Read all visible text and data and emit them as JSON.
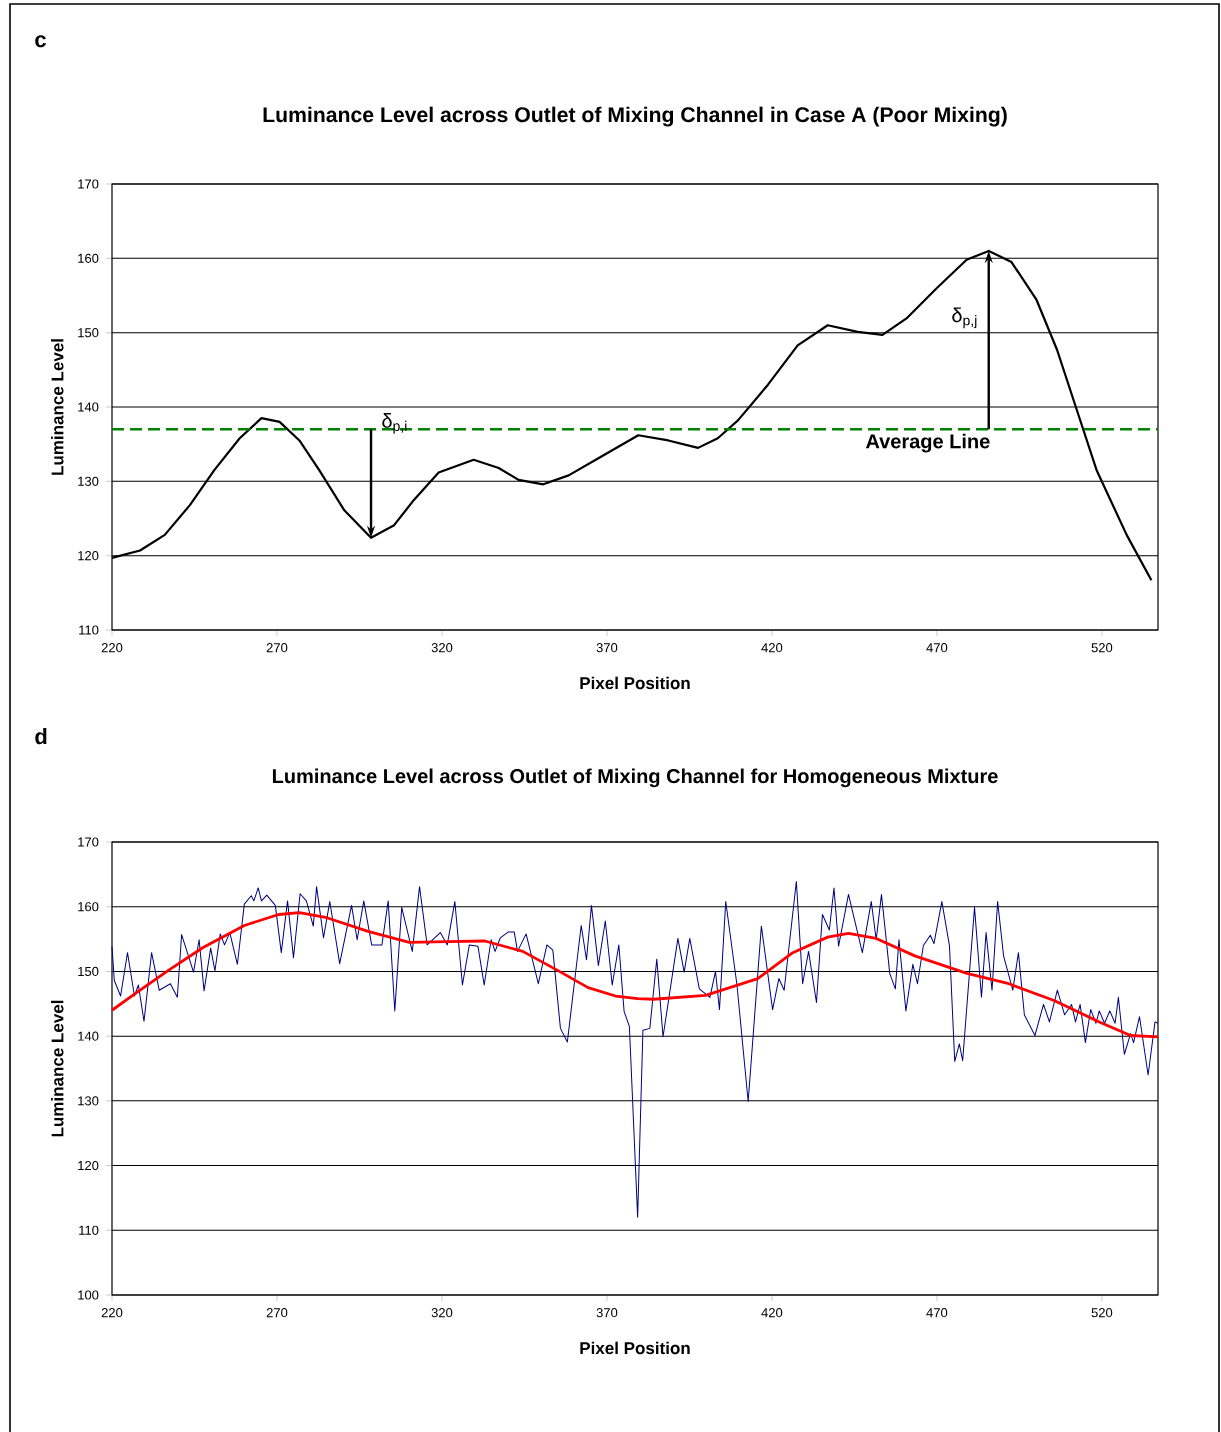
{
  "chart_data": [
    {
      "type": "line",
      "title": "Luminance Level across Outlet of Mixing Channel in Case A (Poor Mixing)",
      "xlabel": "Pixel Position",
      "ylabel": "Luminance Level",
      "x": [
        220,
        228.5,
        236,
        243.6,
        251,
        258.7,
        265.3,
        270.8,
        276.8,
        282.8,
        290.4,
        298.5,
        305.5,
        311.5,
        319,
        329.6,
        337.2,
        343.2,
        350.7,
        358.4,
        367.4,
        379.5,
        388.6,
        397.6,
        403.6,
        409.7,
        418.8,
        427.8,
        436.9,
        446,
        453.5,
        461,
        470,
        479,
        485.7,
        492.6,
        500.2,
        506.4,
        512.4,
        518.4,
        527.5,
        535
      ],
      "series": [
        {
          "color": "#000000",
          "values": [
            119.7,
            120.7,
            122.8,
            126.8,
            131.5,
            135.8,
            138.5,
            138,
            135.5,
            131.5,
            126.1,
            122.4,
            124.1,
            127.5,
            131.2,
            132.9,
            131.8,
            130.2,
            129.6,
            130.8,
            133.1,
            136.2,
            135.5,
            134.5,
            135.8,
            138.2,
            143,
            148.3,
            151,
            150.1,
            149.7,
            152,
            156,
            159.8,
            161,
            159.5,
            154.4,
            147.7,
            139.6,
            131.5,
            122.8,
            116.7
          ]
        }
      ],
      "xlim": [
        220,
        537
      ],
      "ylim": [
        110,
        170
      ],
      "xticks": [
        220,
        270,
        320,
        370,
        420,
        470,
        520
      ],
      "yticks": [
        110,
        120,
        130,
        140,
        150,
        160,
        170
      ],
      "grid": "y",
      "ref_lines": [
        {
          "axis": "y",
          "value": 137,
          "label": "Average Line",
          "color": "#008000",
          "line_style": "dashed"
        }
      ],
      "annotations": [
        "c",
        {
          "text": "δ$_{p,i}$",
          "x": 298.5,
          "y": 122.4
        },
        {
          "text": "δ$_{p,j}$",
          "x": 485.7,
          "y": 161
        }
      ]
    },
    {
      "type": "line",
      "title": "Luminance Level across Outlet of Mixing Channel for Homogeneous Mixture",
      "xlabel": "Pixel Position",
      "ylabel": "Luminance Level",
      "series": [
        {
          "color": "#000080",
          "x": [
            220,
            220.7,
            222.6,
            224.7,
            226.8,
            228,
            229.7,
            232,
            234.3,
            237.7,
            239.8,
            241.1,
            244.7,
            246.4,
            247.9,
            249.9,
            251.2,
            252.8,
            254.1,
            255.7,
            258,
            260.1,
            262.2,
            263,
            264.3,
            265.3,
            266.9,
            269.5,
            271.3,
            273.2,
            275,
            277,
            278.9,
            281,
            282,
            284.1,
            286,
            289,
            292.6,
            294.3,
            296.3,
            298.7,
            301.8,
            303.7,
            305.7,
            307.8,
            311,
            313.2,
            315.5,
            319.5,
            321.6,
            323.9,
            326.2,
            328.3,
            330.9,
            332.8,
            334.9,
            336.1,
            337.7,
            340.1,
            341.9,
            342.9,
            345.5,
            349.2,
            351.8,
            353.6,
            355.9,
            358,
            362.2,
            363.8,
            365.3,
            367.4,
            369.5,
            371.6,
            373.6,
            375.2,
            376.8,
            379.3,
            380.9,
            383,
            385.1,
            387,
            391.5,
            393.4,
            395.1,
            398,
            401.2,
            402.9,
            404.1,
            406,
            409.4,
            412.8,
            416.8,
            420.2,
            422.1,
            423.7,
            427.4,
            429.3,
            431.1,
            433.5,
            435.3,
            437.4,
            438.8,
            440.2,
            443.2,
            447.4,
            450.1,
            451.6,
            453.2,
            455.7,
            457.4,
            458.5,
            460.6,
            462.7,
            464.1,
            465.9,
            468,
            469.1,
            471.5,
            473.8,
            475.4,
            476.8,
            477.8,
            481.4,
            483.5,
            484.9,
            486.7,
            488.4,
            490.2,
            493,
            494.7,
            496.5,
            499.7,
            502.3,
            504.1,
            506.5,
            508.7,
            510.8,
            512,
            513.4,
            515,
            516.6,
            518.2,
            519.2,
            520.8,
            522.4,
            524,
            525,
            526.8,
            528.7,
            529.6,
            531.4,
            534,
            536.1,
            537
          ],
          "values": [
            153.8,
            148.6,
            146.2,
            152.9,
            146.2,
            147.9,
            142.3,
            152.9,
            147.1,
            148.1,
            146,
            155.7,
            149.9,
            154.9,
            147,
            153.6,
            150.1,
            155.8,
            154.1,
            156,
            151.1,
            160.4,
            161.7,
            160.9,
            162.9,
            160.9,
            161.8,
            160.2,
            152.9,
            160.9,
            152.1,
            162,
            160.9,
            157,
            163.1,
            155.2,
            160.8,
            151.2,
            160.2,
            154.9,
            160.9,
            154.1,
            154.1,
            160.9,
            143.9,
            159.9,
            153.1,
            163.1,
            154.1,
            156,
            154.1,
            160.8,
            147.9,
            154.1,
            153.9,
            147.9,
            154.9,
            153.1,
            155.2,
            156.1,
            156.1,
            153.1,
            155.8,
            148.1,
            154.1,
            153.3,
            141.2,
            139.1,
            157.1,
            151.8,
            160.2,
            150.9,
            157.8,
            147.9,
            154.1,
            143.8,
            141.5,
            112,
            140.9,
            141.2,
            151.9,
            139.9,
            155.1,
            149.9,
            155.1,
            147.3,
            146,
            150,
            144.1,
            160.8,
            147.9,
            129.9,
            157,
            144.1,
            148.9,
            147.1,
            163.9,
            148.1,
            153.1,
            145.2,
            158.8,
            156.4,
            162.9,
            153.9,
            161.9,
            152.9,
            160.8,
            154.9,
            161.9,
            149.7,
            147.3,
            154.9,
            143.9,
            151.1,
            148.1,
            154,
            155.6,
            154.3,
            160.8,
            154,
            136.1,
            138.8,
            136.2,
            159.9,
            146,
            156,
            147.1,
            160.8,
            152.4,
            147.1,
            152.9,
            143.3,
            140.1,
            144.9,
            142.2,
            147.1,
            143.3,
            144.9,
            142.2,
            144.9,
            139,
            144.1,
            142,
            143.9,
            142,
            143.9,
            142,
            146,
            137.2,
            140.4,
            139,
            143,
            134,
            142.2,
            142
          ]
        },
        {
          "color": "#ff0000",
          "x": [
            220,
            226.8,
            237.2,
            247.6,
            260.1,
            270.5,
            276.8,
            285.1,
            297.6,
            310.1,
            321.6,
            333,
            344.5,
            354.9,
            364.3,
            372.6,
            379.4,
            384.1,
            399.9,
            415.7,
            426.3,
            436.9,
            443.2,
            451.6,
            463.3,
            479.1,
            491.8,
            505.5,
            519.2,
            528.7,
            537
          ],
          "values": [
            144,
            146.5,
            150.2,
            153.7,
            157.1,
            158.8,
            159.1,
            158.3,
            156.2,
            154.5,
            154.6,
            154.7,
            153.1,
            150.2,
            147.5,
            146.2,
            145.8,
            145.7,
            146.3,
            148.9,
            152.9,
            155.3,
            155.9,
            155.1,
            152.4,
            149.7,
            148.1,
            145.5,
            142.2,
            140.1,
            139.9
          ]
        }
      ],
      "xlim": [
        220,
        537
      ],
      "ylim": [
        100,
        170
      ],
      "xticks": [
        220,
        270,
        320,
        370,
        420,
        470,
        520
      ],
      "yticks": [
        100,
        110,
        120,
        130,
        140,
        150,
        160,
        170
      ],
      "grid": "y",
      "annotations": [
        "d"
      ]
    }
  ]
}
